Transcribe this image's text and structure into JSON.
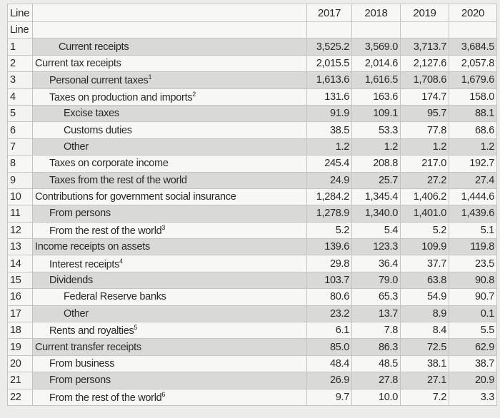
{
  "header": {
    "line_label": "Line",
    "line_label_2": "Line",
    "years": [
      "2017",
      "2018",
      "2019",
      "2020"
    ]
  },
  "rows": [
    {
      "line": "1",
      "label": "Current receipts",
      "note": "",
      "level": 0,
      "values": [
        "3,525.2",
        "3,569.0",
        "3,713.7",
        "3,684.5"
      ]
    },
    {
      "line": "2",
      "label": "Current tax receipts",
      "note": "",
      "level": 1,
      "values": [
        "2,015.5",
        "2,014.6",
        "2,127.6",
        "2,057.8"
      ]
    },
    {
      "line": "3",
      "label": "Personal current taxes",
      "note": "1",
      "level": 2,
      "values": [
        "1,613.6",
        "1,616.5",
        "1,708.6",
        "1,679.6"
      ]
    },
    {
      "line": "4",
      "label": "Taxes on production and imports",
      "note": "2",
      "level": 2,
      "values": [
        "131.6",
        "163.6",
        "174.7",
        "158.0"
      ]
    },
    {
      "line": "5",
      "label": "Excise taxes",
      "note": "",
      "level": 3,
      "values": [
        "91.9",
        "109.1",
        "95.7",
        "88.1"
      ]
    },
    {
      "line": "6",
      "label": "Customs duties",
      "note": "",
      "level": 3,
      "values": [
        "38.5",
        "53.3",
        "77.8",
        "68.6"
      ]
    },
    {
      "line": "7",
      "label": "Other",
      "note": "",
      "level": 3,
      "values": [
        "1.2",
        "1.2",
        "1.2",
        "1.2"
      ]
    },
    {
      "line": "8",
      "label": "Taxes on corporate income",
      "note": "",
      "level": 2,
      "values": [
        "245.4",
        "208.8",
        "217.0",
        "192.7"
      ]
    },
    {
      "line": "9",
      "label": "Taxes from the rest of the world",
      "note": "",
      "level": 2,
      "values": [
        "24.9",
        "25.7",
        "27.2",
        "27.4"
      ]
    },
    {
      "line": "10",
      "label": "Contributions for government social insurance",
      "note": "",
      "level": 1,
      "values": [
        "1,284.2",
        "1,345.4",
        "1,406.2",
        "1,444.6"
      ]
    },
    {
      "line": "11",
      "label": "From persons",
      "note": "",
      "level": 2,
      "values": [
        "1,278.9",
        "1,340.0",
        "1,401.0",
        "1,439.6"
      ]
    },
    {
      "line": "12",
      "label": "From the rest of the world",
      "note": "3",
      "level": 2,
      "values": [
        "5.2",
        "5.4",
        "5.2",
        "5.1"
      ]
    },
    {
      "line": "13",
      "label": "Income receipts on assets",
      "note": "",
      "level": 1,
      "values": [
        "139.6",
        "123.3",
        "109.9",
        "119.8"
      ]
    },
    {
      "line": "14",
      "label": "Interest receipts",
      "note": "4",
      "level": 2,
      "values": [
        "29.8",
        "36.4",
        "37.7",
        "23.5"
      ]
    },
    {
      "line": "15",
      "label": "Dividends",
      "note": "",
      "level": 2,
      "values": [
        "103.7",
        "79.0",
        "63.8",
        "90.8"
      ]
    },
    {
      "line": "16",
      "label": "Federal Reserve banks",
      "note": "",
      "level": 3,
      "values": [
        "80.6",
        "65.3",
        "54.9",
        "90.7"
      ]
    },
    {
      "line": "17",
      "label": "Other",
      "note": "",
      "level": 3,
      "values": [
        "23.2",
        "13.7",
        "8.9",
        "0.1"
      ]
    },
    {
      "line": "18",
      "label": "Rents and royalties",
      "note": "5",
      "level": 2,
      "values": [
        "6.1",
        "7.8",
        "8.4",
        "5.5"
      ]
    },
    {
      "line": "19",
      "label": "Current transfer receipts",
      "note": "",
      "level": 1,
      "values": [
        "85.0",
        "86.3",
        "72.5",
        "62.9"
      ]
    },
    {
      "line": "20",
      "label": "From business",
      "note": "",
      "level": 2,
      "values": [
        "48.4",
        "48.5",
        "38.1",
        "38.7"
      ]
    },
    {
      "line": "21",
      "label": "From persons",
      "note": "",
      "level": 2,
      "values": [
        "26.9",
        "27.8",
        "27.1",
        "20.9"
      ]
    },
    {
      "line": "22",
      "label": "From the rest of the world",
      "note": "6",
      "level": 2,
      "values": [
        "9.7",
        "10.0",
        "7.2",
        "3.3"
      ]
    }
  ]
}
